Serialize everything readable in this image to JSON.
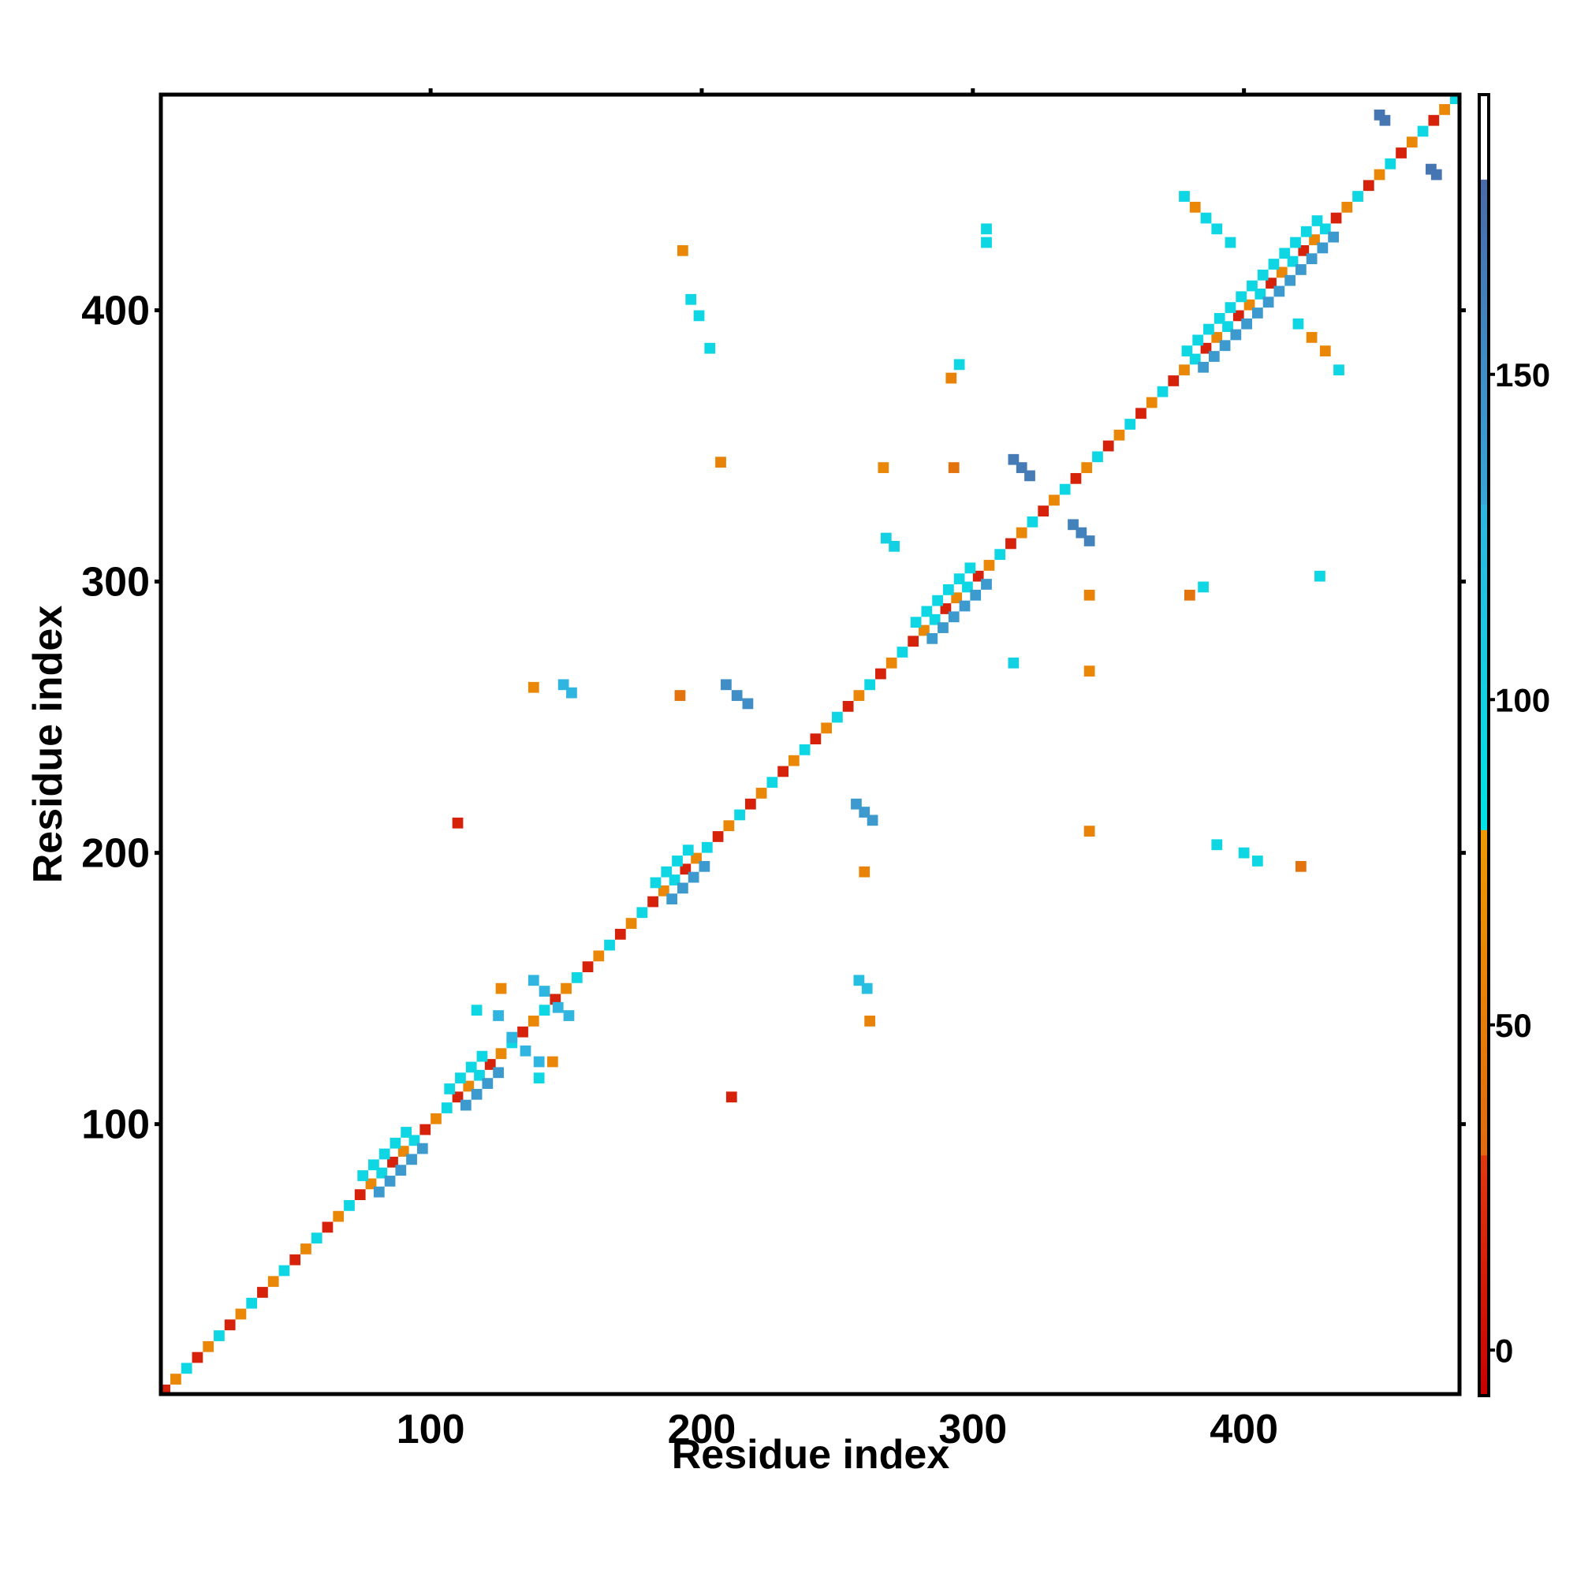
{
  "chart_data": {
    "type": "heatmap",
    "x_label": "Residue index",
    "y_label": "Residue index",
    "xlim": [
      0.5,
      479.5
    ],
    "ylim": [
      0.5,
      479.5
    ],
    "xticks": [
      100,
      200,
      300,
      400
    ],
    "yticks": [
      100,
      200,
      300,
      400
    ],
    "x": [
      2,
      6,
      10,
      14,
      18,
      22,
      26,
      30,
      34,
      38,
      42,
      46,
      50,
      54,
      58,
      62,
      66,
      70,
      74,
      78,
      82,
      86,
      90,
      94,
      98,
      102,
      106,
      110,
      114,
      118,
      122,
      126,
      130,
      134,
      138,
      142,
      146,
      150,
      154,
      158,
      162,
      166,
      170,
      174,
      178,
      182,
      186,
      190,
      194,
      198,
      202,
      206,
      210,
      214,
      218,
      222,
      226,
      230,
      234,
      238,
      242,
      246,
      250,
      254,
      258,
      262,
      266,
      270,
      274,
      278,
      282,
      286,
      290,
      294,
      298,
      302,
      306,
      310,
      314,
      318,
      322,
      326,
      330,
      334,
      338,
      342,
      346,
      350,
      354,
      358,
      362,
      366,
      370,
      374,
      378,
      382,
      386,
      390,
      394,
      398,
      402,
      406,
      410,
      414,
      418,
      422,
      426,
      430,
      434,
      438,
      442,
      446,
      450,
      454,
      458,
      462,
      466,
      470,
      474,
      478,
      81,
      85,
      89,
      93,
      97,
      113,
      117,
      121,
      125,
      189,
      193,
      197,
      201,
      285,
      289,
      293,
      297,
      301,
      305,
      385,
      389,
      393,
      397,
      401,
      405,
      409,
      413,
      417,
      421,
      425,
      429,
      433,
      75,
      79,
      83,
      87,
      91,
      107,
      111,
      115,
      119,
      183,
      187,
      191,
      195,
      279,
      283,
      287,
      291,
      295,
      299,
      379,
      383,
      387,
      391,
      395,
      399,
      403,
      407,
      411,
      415,
      419,
      423,
      427,
      450,
      452,
      469,
      471,
      378,
      382,
      386,
      390,
      395,
      420,
      425,
      430,
      435,
      305,
      305,
      193,
      196,
      199,
      203,
      295,
      292,
      207,
      315,
      318,
      321,
      337,
      340,
      343,
      267,
      293,
      268,
      271,
      343,
      380,
      385,
      428,
      315,
      343,
      138,
      149,
      152,
      209,
      213,
      217,
      192,
      257,
      260,
      263,
      110,
      343,
      390,
      400,
      405,
      421,
      258,
      261,
      262,
      138,
      142,
      147,
      151,
      125,
      130,
      135,
      140,
      117,
      126,
      140,
      145,
      211,
      260
    ],
    "y": [
      2,
      6,
      10,
      14,
      18,
      22,
      26,
      30,
      34,
      38,
      42,
      46,
      50,
      54,
      58,
      62,
      66,
      70,
      74,
      78,
      82,
      86,
      90,
      94,
      98,
      102,
      106,
      110,
      114,
      118,
      122,
      126,
      130,
      134,
      138,
      142,
      146,
      150,
      154,
      158,
      162,
      166,
      170,
      174,
      178,
      182,
      186,
      190,
      194,
      198,
      202,
      206,
      210,
      214,
      218,
      222,
      226,
      230,
      234,
      238,
      242,
      246,
      250,
      254,
      258,
      262,
      266,
      270,
      274,
      278,
      282,
      286,
      290,
      294,
      298,
      302,
      306,
      310,
      314,
      318,
      322,
      326,
      330,
      334,
      338,
      342,
      346,
      350,
      354,
      358,
      362,
      366,
      370,
      374,
      378,
      382,
      386,
      390,
      394,
      398,
      402,
      406,
      410,
      414,
      418,
      422,
      426,
      430,
      434,
      438,
      442,
      446,
      450,
      454,
      458,
      462,
      466,
      470,
      474,
      478,
      75,
      79,
      83,
      87,
      91,
      107,
      111,
      115,
      119,
      183,
      187,
      191,
      195,
      279,
      283,
      287,
      291,
      295,
      299,
      379,
      383,
      387,
      391,
      395,
      399,
      403,
      407,
      411,
      415,
      419,
      423,
      427,
      81,
      85,
      89,
      93,
      97,
      113,
      117,
      121,
      125,
      189,
      193,
      197,
      201,
      285,
      289,
      293,
      297,
      301,
      305,
      385,
      389,
      393,
      397,
      401,
      405,
      409,
      413,
      417,
      421,
      425,
      429,
      433,
      472,
      470,
      452,
      450,
      442,
      438,
      434,
      430,
      425,
      395,
      390,
      385,
      378,
      430,
      425,
      422,
      404,
      398,
      386,
      380,
      375,
      344,
      345,
      342,
      339,
      321,
      318,
      315,
      342,
      342,
      316,
      313,
      295,
      295,
      298,
      302,
      270,
      267,
      261,
      262,
      259,
      262,
      258,
      255,
      258,
      218,
      215,
      212,
      211,
      208,
      203,
      200,
      197,
      195,
      153,
      150,
      138,
      153,
      149,
      143,
      140,
      140,
      132,
      127,
      123,
      142,
      150,
      117,
      123,
      110,
      193
    ],
    "values": [
      15,
      60,
      95,
      15,
      60,
      95,
      15,
      60,
      95,
      15,
      60,
      95,
      15,
      60,
      95,
      15,
      60,
      95,
      15,
      60,
      95,
      15,
      60,
      95,
      15,
      60,
      95,
      15,
      60,
      95,
      15,
      60,
      95,
      15,
      60,
      95,
      15,
      60,
      95,
      15,
      60,
      95,
      15,
      60,
      95,
      15,
      60,
      95,
      15,
      60,
      95,
      15,
      60,
      95,
      15,
      60,
      95,
      15,
      60,
      95,
      15,
      60,
      95,
      15,
      60,
      95,
      15,
      60,
      95,
      15,
      60,
      95,
      15,
      60,
      95,
      15,
      60,
      95,
      15,
      60,
      95,
      15,
      60,
      95,
      15,
      60,
      95,
      15,
      60,
      95,
      15,
      60,
      95,
      15,
      60,
      95,
      15,
      60,
      95,
      15,
      60,
      95,
      15,
      60,
      95,
      15,
      60,
      95,
      15,
      60,
      95,
      15,
      60,
      95,
      15,
      60,
      95,
      15,
      60,
      95,
      140,
      140,
      140,
      140,
      140,
      140,
      140,
      140,
      140,
      140,
      140,
      140,
      140,
      140,
      140,
      140,
      140,
      140,
      140,
      140,
      140,
      140,
      140,
      140,
      140,
      140,
      140,
      140,
      140,
      140,
      140,
      140,
      95,
      95,
      95,
      95,
      95,
      95,
      95,
      95,
      95,
      95,
      95,
      95,
      95,
      95,
      95,
      95,
      95,
      95,
      95,
      95,
      95,
      95,
      95,
      95,
      95,
      95,
      95,
      95,
      95,
      95,
      95,
      95,
      170,
      170,
      170,
      170,
      95,
      60,
      95,
      95,
      95,
      95,
      60,
      60,
      95,
      95,
      95,
      60,
      95,
      95,
      95,
      95,
      55,
      55,
      165,
      165,
      165,
      160,
      160,
      160,
      60,
      40,
      100,
      100,
      55,
      40,
      95,
      95,
      100,
      60,
      60,
      130,
      130,
      150,
      150,
      150,
      40,
      140,
      140,
      140,
      15,
      55,
      95,
      95,
      95,
      40,
      120,
      120,
      55,
      130,
      130,
      130,
      130,
      130,
      130,
      130,
      130,
      95,
      60,
      95,
      60,
      15,
      55
    ],
    "colorbar": {
      "lim": [
        -7,
        193
      ],
      "ticks": [
        0,
        50,
        100,
        150
      ],
      "bands": [
        {
          "from": -7,
          "to": 30,
          "colors": [
            "#c80000",
            "#e03a10"
          ]
        },
        {
          "from": 30,
          "to": 80,
          "colors": [
            "#e06a10",
            "#f09a00"
          ]
        },
        {
          "from": 80,
          "to": 130,
          "colors": [
            "#00e4e4",
            "#30b4e0"
          ]
        },
        {
          "from": 130,
          "to": 180,
          "colors": [
            "#38a6d8",
            "#4a6aa8"
          ]
        },
        {
          "from": 180,
          "to": 193,
          "colors": [
            "#ffffff",
            "#ffffff"
          ]
        }
      ]
    }
  }
}
